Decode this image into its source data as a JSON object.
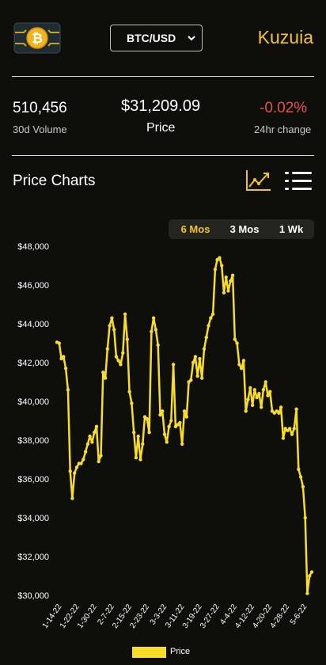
{
  "header": {
    "pair": "BTC/USD",
    "brand": "Kuzuia"
  },
  "stats": {
    "volume_value": "510,456",
    "volume_label": "30d Volume",
    "price_value": "$31,209.09",
    "price_label": "Price",
    "change_value": "-0.02%",
    "change_label": "24hr change"
  },
  "charts_section": {
    "title": "Price Charts",
    "ranges": [
      "6 Mos",
      "3 Mos",
      "1 Wk"
    ],
    "active_range": "6 Mos"
  },
  "colors": {
    "accent": "#f2c42c",
    "negative": "#e8514b",
    "line": "#f7dd2a",
    "background": "#0e0f0a"
  },
  "icons": {
    "logo": "bitcoin-chip-icon",
    "chart": "line-chart-icon",
    "menu": "list-menu-icon"
  },
  "chart_data": {
    "type": "line",
    "ylim": [
      30000,
      48000
    ],
    "yticks": [
      "$30,000",
      "$32,000",
      "$34,000",
      "$36,000",
      "$38,000",
      "$40,000",
      "$42,000",
      "$44,000",
      "$46,000",
      "$48,000"
    ],
    "xticks": [
      "1-14-22",
      "1-22-22",
      "1-30-22",
      "2-7-22",
      "2-15-22",
      "2-23-22",
      "3-3-22",
      "3-11-22",
      "3-19-22",
      "3-27-22",
      "4-4-22",
      "4-12-22",
      "4-20-22",
      "4-28-22",
      "5-6-22"
    ],
    "legend": "Price",
    "series": [
      {
        "name": "Price",
        "values": [
          43050,
          43000,
          42200,
          42300,
          41700,
          40600,
          36400,
          35000,
          36300,
          36600,
          36800,
          36800,
          37000,
          37400,
          37800,
          38200,
          37900,
          38400,
          38700,
          36900,
          37200,
          41500,
          41200,
          42700,
          43900,
          44300,
          43700,
          42300,
          42100,
          41900,
          42500,
          44500,
          43200,
          40500,
          39900,
          38400,
          37100,
          38200,
          37000,
          37800,
          39200,
          39100,
          38400,
          43600,
          44300,
          43700,
          42900,
          39300,
          39500,
          38300,
          37900,
          38700,
          39000,
          41900,
          38700,
          38800,
          38900,
          37800,
          39500,
          39200,
          41000,
          41100,
          42000,
          42300,
          41300,
          42200,
          41200,
          42700,
          43300,
          43900,
          44300,
          44500,
          46800,
          47300,
          47400,
          47000,
          45600,
          46400,
          45700,
          46200,
          46500,
          43200,
          43000,
          41900,
          41700,
          42100,
          39500,
          40100,
          40700,
          39800,
          40600,
          40200,
          40400,
          39700,
          40600,
          41000,
          40300,
          40500,
          39500,
          39400,
          39500,
          39400,
          39700,
          38100,
          38600,
          38500,
          38600,
          38300,
          38600,
          39600,
          36500,
          36100,
          35600,
          34000,
          30100,
          31000,
          31200
        ]
      }
    ]
  }
}
